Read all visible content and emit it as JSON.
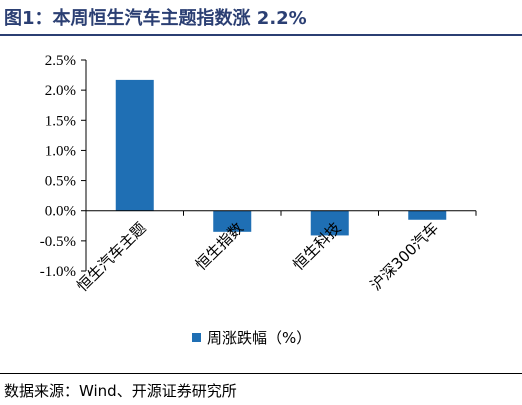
{
  "title": "图1：本周恒生汽车主题指数涨 2.2%",
  "source": "数据来源：Wind、开源证券研究所",
  "colors": {
    "bar": "#1f6fb4",
    "title": "#2b3f73"
  },
  "chart_data": {
    "type": "bar",
    "categories": [
      "恒生汽车主题",
      "恒生指数",
      "恒生科技",
      "沪深300汽车"
    ],
    "series": [
      {
        "name": "周涨跌幅（%）",
        "values": [
          2.17,
          -0.35,
          -0.41,
          -0.15
        ]
      }
    ],
    "ylim": [
      -1.0,
      2.5
    ],
    "yticks": [
      "-1.0%",
      "-0.5%",
      "0.0%",
      "0.5%",
      "1.0%",
      "1.5%",
      "2.0%",
      "2.5%"
    ],
    "ytick_values": [
      -1.0,
      -0.5,
      0.0,
      0.5,
      1.0,
      1.5,
      2.0,
      2.5
    ],
    "xlabel": "",
    "ylabel": "",
    "grid": false,
    "legend": "bottom"
  }
}
